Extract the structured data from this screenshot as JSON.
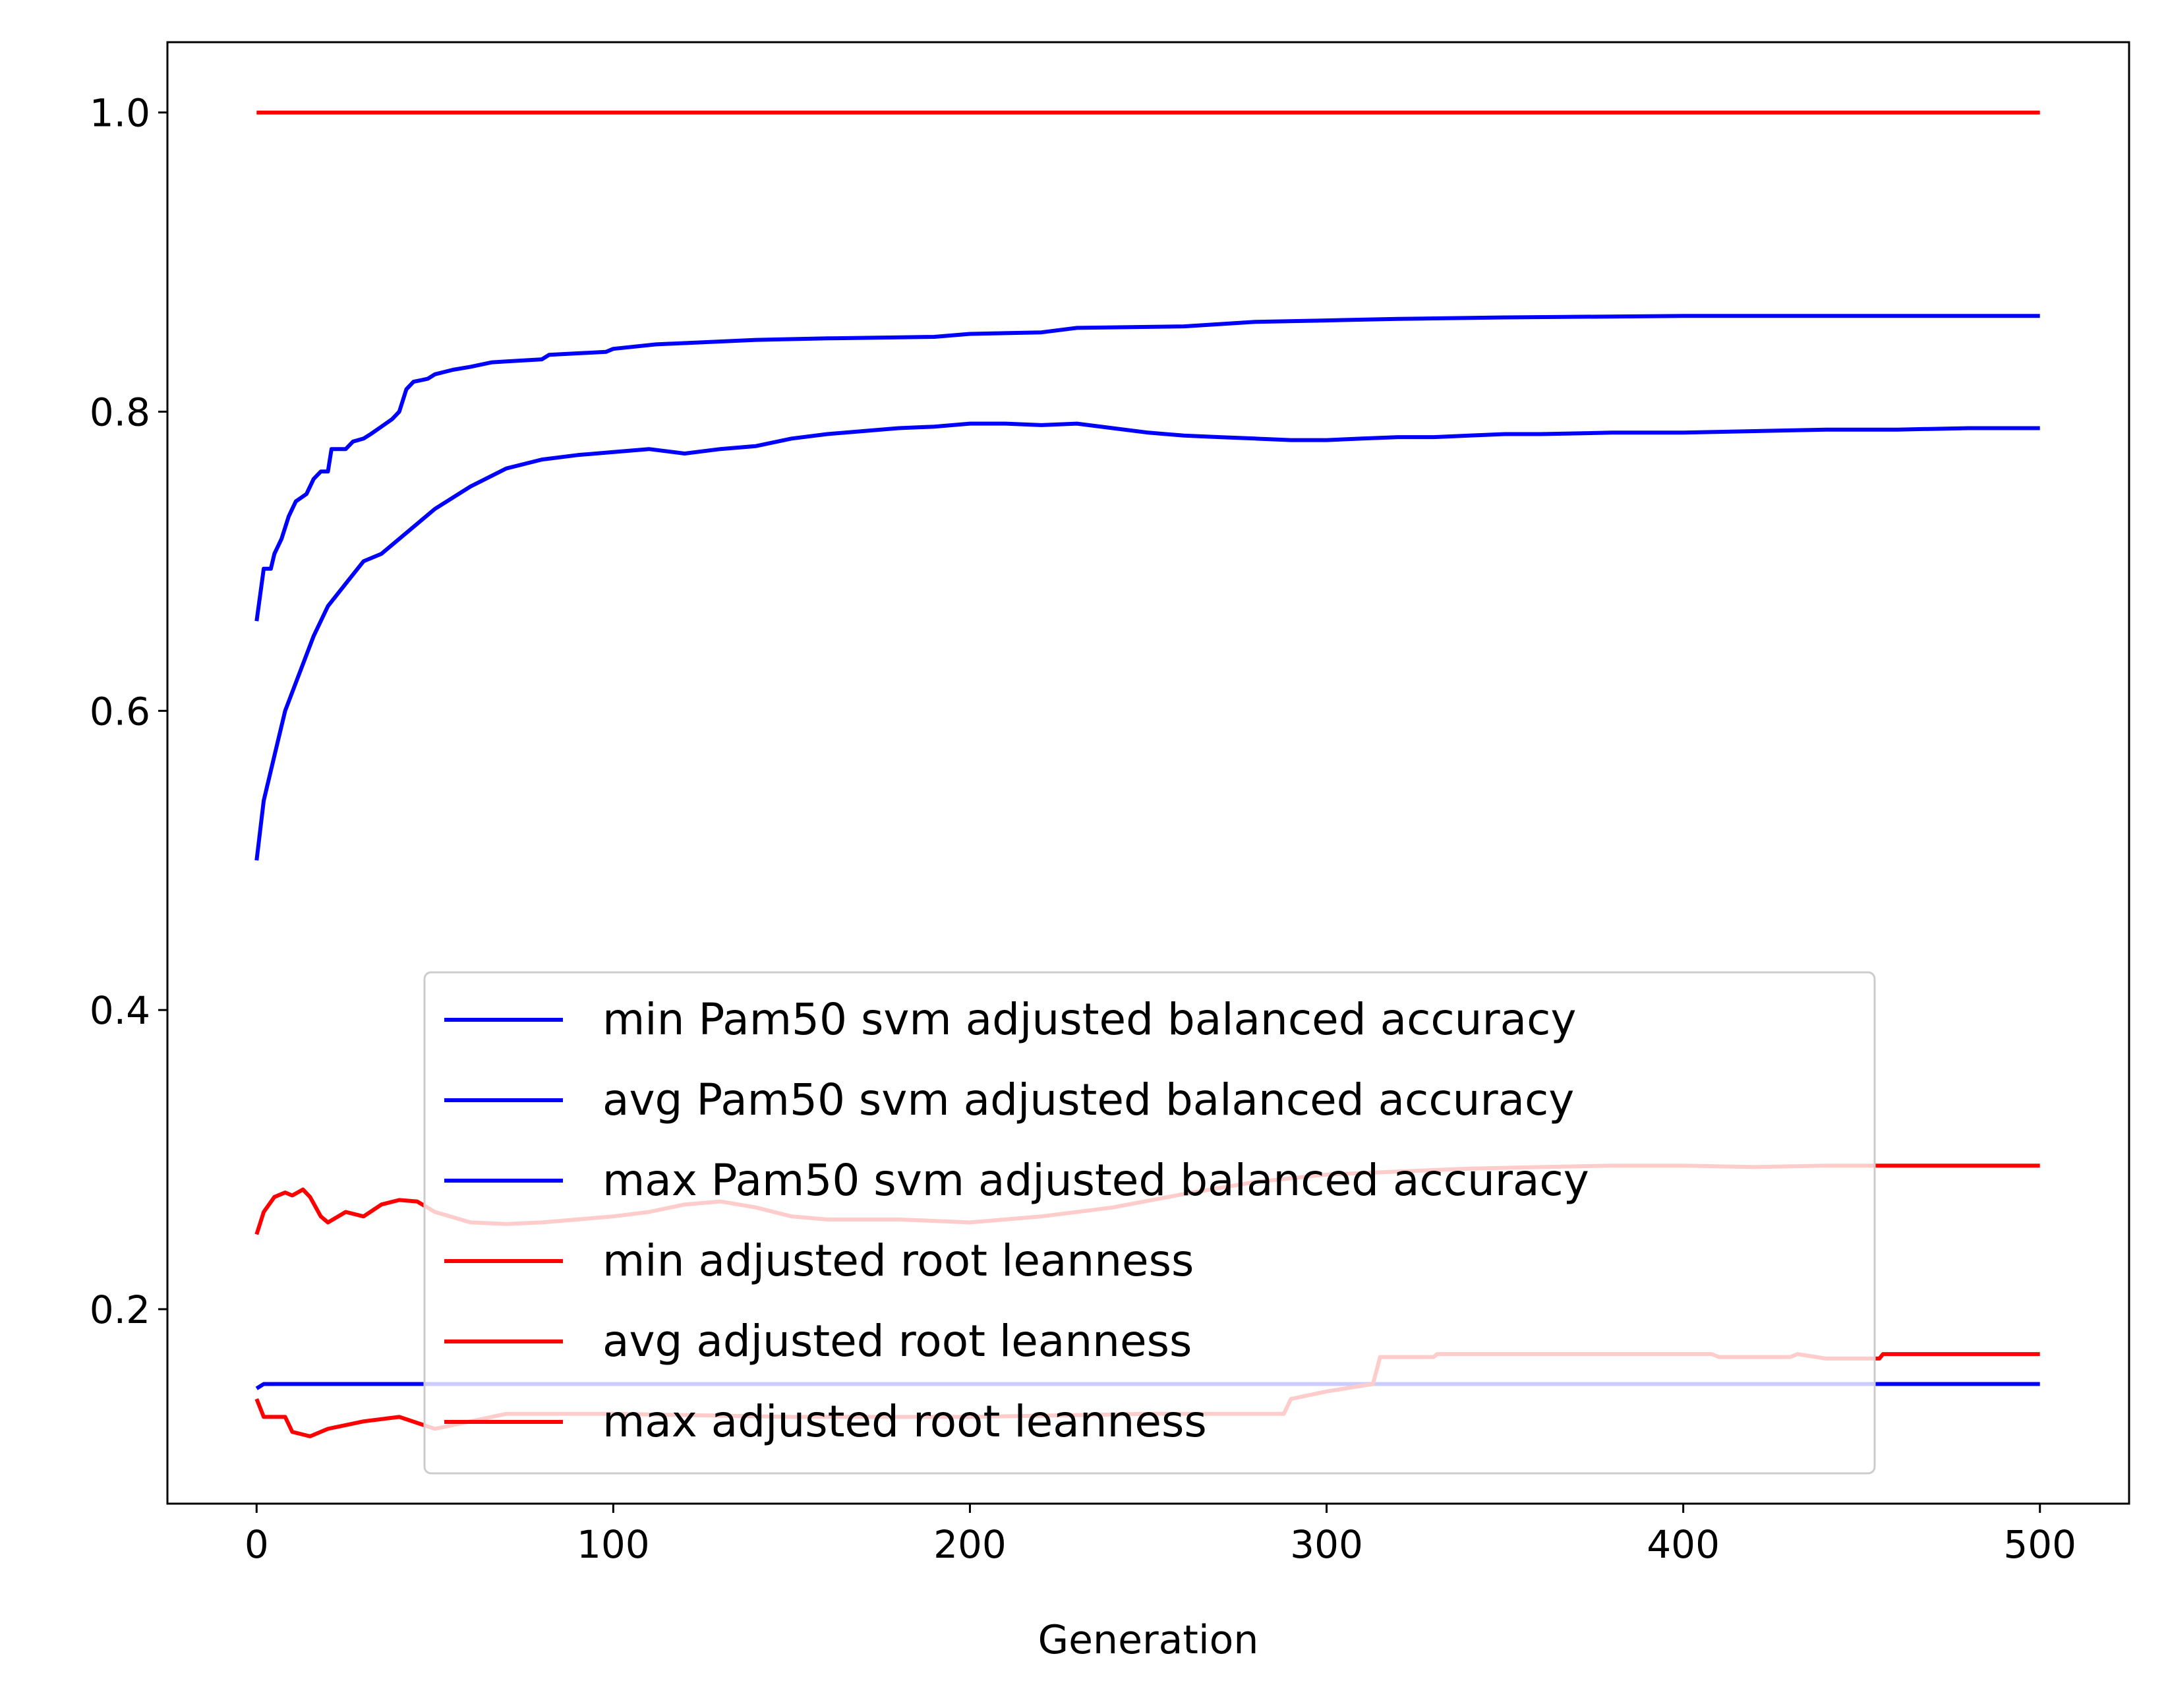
{
  "chart_data": {
    "type": "line",
    "title": "",
    "xlabel": "Generation",
    "ylabel": "",
    "xlim": [
      -25,
      525
    ],
    "ylim": [
      0.07,
      1.047
    ],
    "xticks": [
      0,
      100,
      200,
      300,
      400,
      500
    ],
    "xtick_labels": [
      "0",
      "100",
      "200",
      "300",
      "400",
      "500"
    ],
    "yticks": [
      0.2,
      0.4,
      0.6,
      0.8,
      1.0
    ],
    "ytick_labels": [
      "0.2",
      "0.4",
      "0.6",
      "0.8",
      "1.0"
    ],
    "grid": false,
    "legend_position": "lower-center",
    "series": [
      {
        "name": "min Pam50 svm adjusted balanced accuracy",
        "color": "#0000ff",
        "points": [
          [
            0,
            0.147
          ],
          [
            2,
            0.15
          ],
          [
            500,
            0.15
          ]
        ]
      },
      {
        "name": "avg Pam50 svm adjusted balanced accuracy",
        "color": "#0000ff",
        "points": [
          [
            0,
            0.5
          ],
          [
            2,
            0.54
          ],
          [
            5,
            0.57
          ],
          [
            8,
            0.6
          ],
          [
            12,
            0.625
          ],
          [
            16,
            0.65
          ],
          [
            20,
            0.67
          ],
          [
            25,
            0.685
          ],
          [
            30,
            0.7
          ],
          [
            35,
            0.705
          ],
          [
            40,
            0.715
          ],
          [
            45,
            0.725
          ],
          [
            50,
            0.735
          ],
          [
            60,
            0.75
          ],
          [
            70,
            0.762
          ],
          [
            80,
            0.768
          ],
          [
            90,
            0.771
          ],
          [
            100,
            0.773
          ],
          [
            110,
            0.775
          ],
          [
            120,
            0.772
          ],
          [
            130,
            0.775
          ],
          [
            140,
            0.777
          ],
          [
            150,
            0.782
          ],
          [
            160,
            0.785
          ],
          [
            170,
            0.787
          ],
          [
            180,
            0.789
          ],
          [
            190,
            0.79
          ],
          [
            200,
            0.792
          ],
          [
            210,
            0.792
          ],
          [
            220,
            0.791
          ],
          [
            230,
            0.792
          ],
          [
            240,
            0.789
          ],
          [
            250,
            0.786
          ],
          [
            260,
            0.784
          ],
          [
            270,
            0.783
          ],
          [
            280,
            0.782
          ],
          [
            290,
            0.781
          ],
          [
            300,
            0.781
          ],
          [
            310,
            0.782
          ],
          [
            320,
            0.783
          ],
          [
            330,
            0.783
          ],
          [
            340,
            0.784
          ],
          [
            350,
            0.785
          ],
          [
            360,
            0.785
          ],
          [
            380,
            0.786
          ],
          [
            400,
            0.786
          ],
          [
            420,
            0.787
          ],
          [
            440,
            0.788
          ],
          [
            460,
            0.788
          ],
          [
            480,
            0.789
          ],
          [
            500,
            0.789
          ]
        ]
      },
      {
        "name": "max Pam50 svm adjusted balanced accuracy",
        "color": "#0000ff",
        "points": [
          [
            0,
            0.66
          ],
          [
            2,
            0.695
          ],
          [
            4,
            0.695
          ],
          [
            5,
            0.705
          ],
          [
            7,
            0.715
          ],
          [
            9,
            0.73
          ],
          [
            11,
            0.74
          ],
          [
            14,
            0.745
          ],
          [
            16,
            0.755
          ],
          [
            18,
            0.76
          ],
          [
            20,
            0.76
          ],
          [
            21,
            0.775
          ],
          [
            25,
            0.775
          ],
          [
            27,
            0.78
          ],
          [
            30,
            0.782
          ],
          [
            32,
            0.785
          ],
          [
            35,
            0.79
          ],
          [
            38,
            0.795
          ],
          [
            40,
            0.8
          ],
          [
            42,
            0.815
          ],
          [
            44,
            0.82
          ],
          [
            48,
            0.822
          ],
          [
            50,
            0.825
          ],
          [
            55,
            0.828
          ],
          [
            60,
            0.83
          ],
          [
            66,
            0.833
          ],
          [
            80,
            0.835
          ],
          [
            82,
            0.838
          ],
          [
            98,
            0.84
          ],
          [
            100,
            0.842
          ],
          [
            112,
            0.845
          ],
          [
            140,
            0.848
          ],
          [
            160,
            0.849
          ],
          [
            190,
            0.85
          ],
          [
            200,
            0.852
          ],
          [
            220,
            0.853
          ],
          [
            230,
            0.856
          ],
          [
            260,
            0.857
          ],
          [
            280,
            0.86
          ],
          [
            300,
            0.861
          ],
          [
            320,
            0.862
          ],
          [
            350,
            0.863
          ],
          [
            400,
            0.864
          ],
          [
            500,
            0.864
          ]
        ]
      },
      {
        "name": "min adjusted root leanness",
        "color": "#ff0000",
        "points": [
          [
            0,
            0.14
          ],
          [
            2,
            0.128
          ],
          [
            8,
            0.128
          ],
          [
            10,
            0.118
          ],
          [
            15,
            0.115
          ],
          [
            20,
            0.12
          ],
          [
            30,
            0.125
          ],
          [
            40,
            0.128
          ],
          [
            50,
            0.12
          ],
          [
            60,
            0.125
          ],
          [
            70,
            0.13
          ],
          [
            100,
            0.13
          ],
          [
            150,
            0.128
          ],
          [
            200,
            0.128
          ],
          [
            250,
            0.13
          ],
          [
            288,
            0.13
          ],
          [
            290,
            0.14
          ],
          [
            300,
            0.145
          ],
          [
            313,
            0.15
          ],
          [
            315,
            0.168
          ],
          [
            330,
            0.168
          ],
          [
            331,
            0.17
          ],
          [
            408,
            0.17
          ],
          [
            410,
            0.168
          ],
          [
            430,
            0.168
          ],
          [
            432,
            0.17
          ],
          [
            440,
            0.167
          ],
          [
            455,
            0.167
          ],
          [
            456,
            0.17
          ],
          [
            500,
            0.17
          ]
        ]
      },
      {
        "name": "avg adjusted root leanness",
        "color": "#ff0000",
        "points": [
          [
            0,
            0.25
          ],
          [
            2,
            0.265
          ],
          [
            5,
            0.275
          ],
          [
            8,
            0.278
          ],
          [
            10,
            0.276
          ],
          [
            13,
            0.28
          ],
          [
            15,
            0.275
          ],
          [
            18,
            0.262
          ],
          [
            20,
            0.258
          ],
          [
            25,
            0.265
          ],
          [
            30,
            0.262
          ],
          [
            35,
            0.27
          ],
          [
            40,
            0.273
          ],
          [
            45,
            0.272
          ],
          [
            50,
            0.265
          ],
          [
            60,
            0.258
          ],
          [
            70,
            0.257
          ],
          [
            80,
            0.258
          ],
          [
            100,
            0.262
          ],
          [
            110,
            0.265
          ],
          [
            120,
            0.27
          ],
          [
            130,
            0.272
          ],
          [
            140,
            0.268
          ],
          [
            150,
            0.262
          ],
          [
            160,
            0.26
          ],
          [
            180,
            0.26
          ],
          [
            200,
            0.258
          ],
          [
            220,
            0.262
          ],
          [
            240,
            0.268
          ],
          [
            260,
            0.277
          ],
          [
            280,
            0.285
          ],
          [
            300,
            0.29
          ],
          [
            320,
            0.292
          ],
          [
            340,
            0.294
          ],
          [
            360,
            0.295
          ],
          [
            380,
            0.296
          ],
          [
            400,
            0.296
          ],
          [
            420,
            0.295
          ],
          [
            440,
            0.296
          ],
          [
            460,
            0.296
          ],
          [
            480,
            0.296
          ],
          [
            500,
            0.296
          ]
        ]
      },
      {
        "name": "max adjusted root leanness",
        "color": "#ff0000",
        "points": [
          [
            0,
            1.0
          ],
          [
            500,
            1.0
          ]
        ]
      }
    ]
  }
}
